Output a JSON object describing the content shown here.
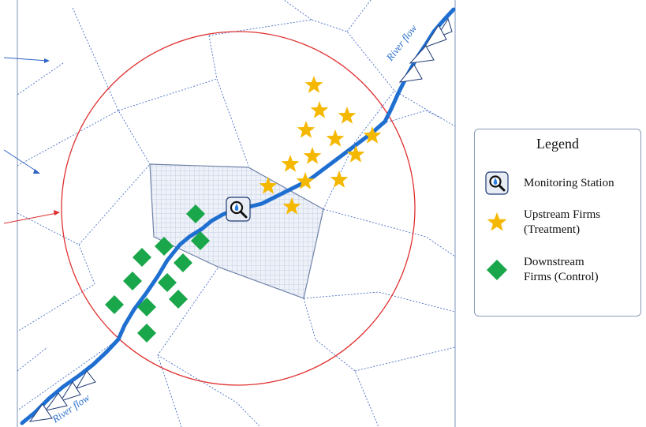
{
  "legend": {
    "title": "Legend",
    "items": [
      {
        "label": "Monitoring Station",
        "icon": "monitoring-station-icon"
      },
      {
        "label": "Upstream Firms\n(Treatment)",
        "icon": "star-icon"
      },
      {
        "label": "Downstream\nFirms (Control)",
        "icon": "diamond-icon"
      }
    ]
  },
  "river_labels": {
    "upper": "River flow",
    "lower": "River flow"
  },
  "colors": {
    "river": "#1f6fd1",
    "circle": "#e03030",
    "grid_lines": "#4a6fc4",
    "star": "#f5b800",
    "diamond": "#1aa64a",
    "catchment_fill": "#dfe6f3",
    "catchment_stroke": "#6f82a8"
  }
}
